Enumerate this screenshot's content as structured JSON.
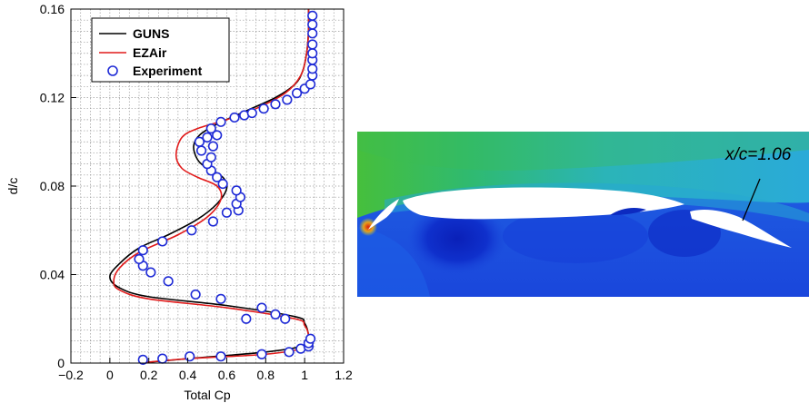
{
  "chart_data": {
    "type": "line",
    "xlabel": "Total Cp",
    "ylabel": "d/c",
    "xlim": [
      -0.2,
      1.2
    ],
    "ylim": [
      0,
      0.16
    ],
    "xticks": [
      -0.2,
      0,
      0.2,
      0.4,
      0.6,
      0.8,
      1,
      1.2
    ],
    "yticks": [
      0,
      0.04,
      0.08,
      0.12,
      0.16
    ],
    "xtick_labels": [
      "−0.2",
      "0",
      "0.2",
      "0.4",
      "0.6",
      "0.8",
      "1",
      "1.2"
    ],
    "ytick_labels": [
      "0",
      "0.04",
      "0.08",
      "0.12",
      "0.16"
    ],
    "grid": true,
    "legend_position": "top-left",
    "series": [
      {
        "name": "GUNS",
        "kind": "line",
        "color": "#000000",
        "points": [
          [
            0.15,
            0.0
          ],
          [
            0.4,
            0.002
          ],
          [
            0.8,
            0.005
          ],
          [
            1.0,
            0.008
          ],
          [
            1.02,
            0.012
          ],
          [
            1.0,
            0.018
          ],
          [
            0.95,
            0.021
          ],
          [
            0.6,
            0.026
          ],
          [
            0.2,
            0.03
          ],
          [
            0.05,
            0.034
          ],
          [
            0.0,
            0.039
          ],
          [
            0.05,
            0.045
          ],
          [
            0.15,
            0.052
          ],
          [
            0.3,
            0.058
          ],
          [
            0.45,
            0.065
          ],
          [
            0.55,
            0.072
          ],
          [
            0.6,
            0.079
          ],
          [
            0.58,
            0.084
          ],
          [
            0.5,
            0.088
          ],
          [
            0.45,
            0.092
          ],
          [
            0.43,
            0.098
          ],
          [
            0.46,
            0.103
          ],
          [
            0.55,
            0.108
          ],
          [
            0.7,
            0.114
          ],
          [
            0.85,
            0.12
          ],
          [
            0.95,
            0.126
          ],
          [
            0.99,
            0.132
          ],
          [
            1.01,
            0.14
          ],
          [
            1.02,
            0.15
          ],
          [
            1.02,
            0.16
          ]
        ]
      },
      {
        "name": "EZAir",
        "kind": "line",
        "color": "#e11a1a",
        "points": [
          [
            0.15,
            0.0
          ],
          [
            0.4,
            0.002
          ],
          [
            0.8,
            0.004
          ],
          [
            1.0,
            0.007
          ],
          [
            1.02,
            0.012
          ],
          [
            1.0,
            0.017
          ],
          [
            0.95,
            0.02
          ],
          [
            0.6,
            0.025
          ],
          [
            0.2,
            0.029
          ],
          [
            0.05,
            0.033
          ],
          [
            0.02,
            0.037
          ],
          [
            0.05,
            0.043
          ],
          [
            0.15,
            0.05
          ],
          [
            0.35,
            0.058
          ],
          [
            0.5,
            0.066
          ],
          [
            0.57,
            0.074
          ],
          [
            0.55,
            0.08
          ],
          [
            0.45,
            0.084
          ],
          [
            0.37,
            0.088
          ],
          [
            0.34,
            0.094
          ],
          [
            0.37,
            0.102
          ],
          [
            0.45,
            0.106
          ],
          [
            0.6,
            0.11
          ],
          [
            0.75,
            0.115
          ],
          [
            0.9,
            0.122
          ],
          [
            0.98,
            0.13
          ],
          [
            1.01,
            0.14
          ],
          [
            1.02,
            0.15
          ],
          [
            1.02,
            0.16
          ]
        ]
      },
      {
        "name": "Experiment",
        "kind": "scatter",
        "color": "#1f2bd6",
        "points": [
          [
            0.17,
            0.0015
          ],
          [
            0.27,
            0.002
          ],
          [
            0.41,
            0.003
          ],
          [
            0.57,
            0.003
          ],
          [
            0.78,
            0.004
          ],
          [
            0.92,
            0.005
          ],
          [
            0.98,
            0.0065
          ],
          [
            1.02,
            0.0075
          ],
          [
            1.02,
            0.009
          ],
          [
            1.03,
            0.011
          ],
          [
            0.7,
            0.02
          ],
          [
            0.9,
            0.02
          ],
          [
            0.85,
            0.022
          ],
          [
            0.78,
            0.025
          ],
          [
            0.57,
            0.029
          ],
          [
            0.44,
            0.031
          ],
          [
            0.3,
            0.037
          ],
          [
            0.21,
            0.041
          ],
          [
            0.17,
            0.044
          ],
          [
            0.15,
            0.047
          ],
          [
            0.17,
            0.051
          ],
          [
            0.27,
            0.055
          ],
          [
            0.42,
            0.06
          ],
          [
            0.53,
            0.064
          ],
          [
            0.6,
            0.068
          ],
          [
            0.66,
            0.069
          ],
          [
            0.65,
            0.072
          ],
          [
            0.67,
            0.075
          ],
          [
            0.65,
            0.078
          ],
          [
            0.58,
            0.081
          ],
          [
            0.55,
            0.084
          ],
          [
            0.52,
            0.087
          ],
          [
            0.5,
            0.09
          ],
          [
            0.52,
            0.093
          ],
          [
            0.47,
            0.096
          ],
          [
            0.53,
            0.098
          ],
          [
            0.46,
            0.1
          ],
          [
            0.5,
            0.102
          ],
          [
            0.55,
            0.103
          ],
          [
            0.52,
            0.106
          ],
          [
            0.57,
            0.109
          ],
          [
            0.64,
            0.111
          ],
          [
            0.69,
            0.112
          ],
          [
            0.73,
            0.113
          ],
          [
            0.79,
            0.115
          ],
          [
            0.85,
            0.117
          ],
          [
            0.91,
            0.119
          ],
          [
            0.96,
            0.122
          ],
          [
            1.0,
            0.124
          ],
          [
            1.03,
            0.126
          ],
          [
            1.04,
            0.13
          ],
          [
            1.04,
            0.133
          ],
          [
            1.04,
            0.137
          ],
          [
            1.04,
            0.14
          ],
          [
            1.04,
            0.144
          ],
          [
            1.04,
            0.149
          ],
          [
            1.04,
            0.153
          ],
          [
            1.04,
            0.157
          ]
        ]
      }
    ]
  },
  "contour_image": {
    "annotation": "x/c=1.06",
    "colors": {
      "deep_blue": "#0a24c8",
      "blue": "#1a46dc",
      "mid_blue": "#2a6ee8",
      "cyan": "#25b0d8",
      "teal": "#30b8b0",
      "green": "#4ec238",
      "yellow": "#c8d028",
      "orange": "#e86a18",
      "red": "#d82010"
    }
  }
}
